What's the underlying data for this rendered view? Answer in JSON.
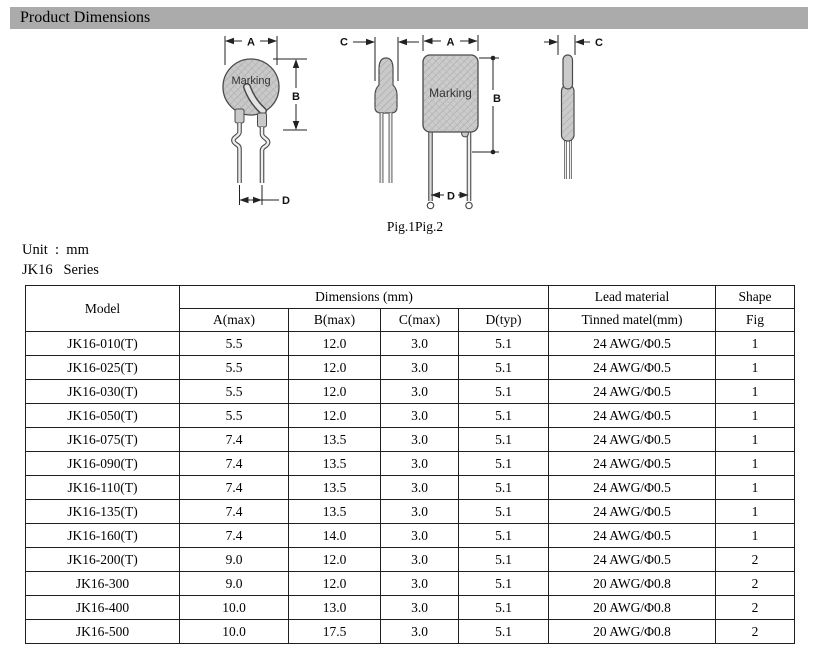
{
  "header": {
    "title": "Product Dimensions"
  },
  "colors": {
    "section_header_bg": "#ababab",
    "component_fill": "#c9c9c9",
    "line_color": "#4a4a4a"
  },
  "figures": {
    "caption": "Pig.1Pig.2",
    "marking_label": "Marking",
    "dim_a_label": "A",
    "dim_b_label": "B",
    "dim_c_label": "C",
    "dim_d_label": "D"
  },
  "meta": {
    "unit_line": "Unit  :  mm",
    "series_line": "JK16   Series"
  },
  "table": {
    "headers": {
      "model": "Model",
      "dimensions_group": "Dimensions (mm)",
      "lead_material_group": "Lead material",
      "shape_group": "Shape",
      "a_max": "A(max)",
      "b_max": "B(max)",
      "c_max": "C(max)",
      "d_typ": "D(typ)",
      "tinned": "Tinned matel(mm)",
      "fig": "Fig"
    },
    "rows": [
      {
        "model": "JK16-010(T)",
        "a": "5.5",
        "b": "12.0",
        "c": "3.0",
        "d": "5.1",
        "lead": "24 AWG/Φ0.5",
        "fig": "1"
      },
      {
        "model": "JK16-025(T)",
        "a": "5.5",
        "b": "12.0",
        "c": "3.0",
        "d": "5.1",
        "lead": "24 AWG/Φ0.5",
        "fig": "1"
      },
      {
        "model": "JK16-030(T)",
        "a": "5.5",
        "b": "12.0",
        "c": "3.0",
        "d": "5.1",
        "lead": "24 AWG/Φ0.5",
        "fig": "1"
      },
      {
        "model": "JK16-050(T)",
        "a": "5.5",
        "b": "12.0",
        "c": "3.0",
        "d": "5.1",
        "lead": "24 AWG/Φ0.5",
        "fig": "1"
      },
      {
        "model": "JK16-075(T)",
        "a": "7.4",
        "b": "13.5",
        "c": "3.0",
        "d": "5.1",
        "lead": "24 AWG/Φ0.5",
        "fig": "1"
      },
      {
        "model": "JK16-090(T)",
        "a": "7.4",
        "b": "13.5",
        "c": "3.0",
        "d": "5.1",
        "lead": "24 AWG/Φ0.5",
        "fig": "1"
      },
      {
        "model": "JK16-110(T)",
        "a": "7.4",
        "b": "13.5",
        "c": "3.0",
        "d": "5.1",
        "lead": "24 AWG/Φ0.5",
        "fig": "1"
      },
      {
        "model": "JK16-135(T)",
        "a": "7.4",
        "b": "13.5",
        "c": "3.0",
        "d": "5.1",
        "lead": "24 AWG/Φ0.5",
        "fig": "1"
      },
      {
        "model": "JK16-160(T)",
        "a": "7.4",
        "b": "14.0",
        "c": "3.0",
        "d": "5.1",
        "lead": "24 AWG/Φ0.5",
        "fig": "1"
      },
      {
        "model": "JK16-200(T)",
        "a": "9.0",
        "b": "12.0",
        "c": "3.0",
        "d": "5.1",
        "lead": "24 AWG/Φ0.5",
        "fig": "2"
      },
      {
        "model": "JK16-300",
        "a": "9.0",
        "b": "12.0",
        "c": "3.0",
        "d": "5.1",
        "lead": "20 AWG/Φ0.8",
        "fig": "2"
      },
      {
        "model": "JK16-400",
        "a": "10.0",
        "b": "13.0",
        "c": "3.0",
        "d": "5.1",
        "lead": "20 AWG/Φ0.8",
        "fig": "2"
      },
      {
        "model": "JK16-500",
        "a": "10.0",
        "b": "17.5",
        "c": "3.0",
        "d": "5.1",
        "lead": "20 AWG/Φ0.8",
        "fig": "2"
      }
    ]
  }
}
